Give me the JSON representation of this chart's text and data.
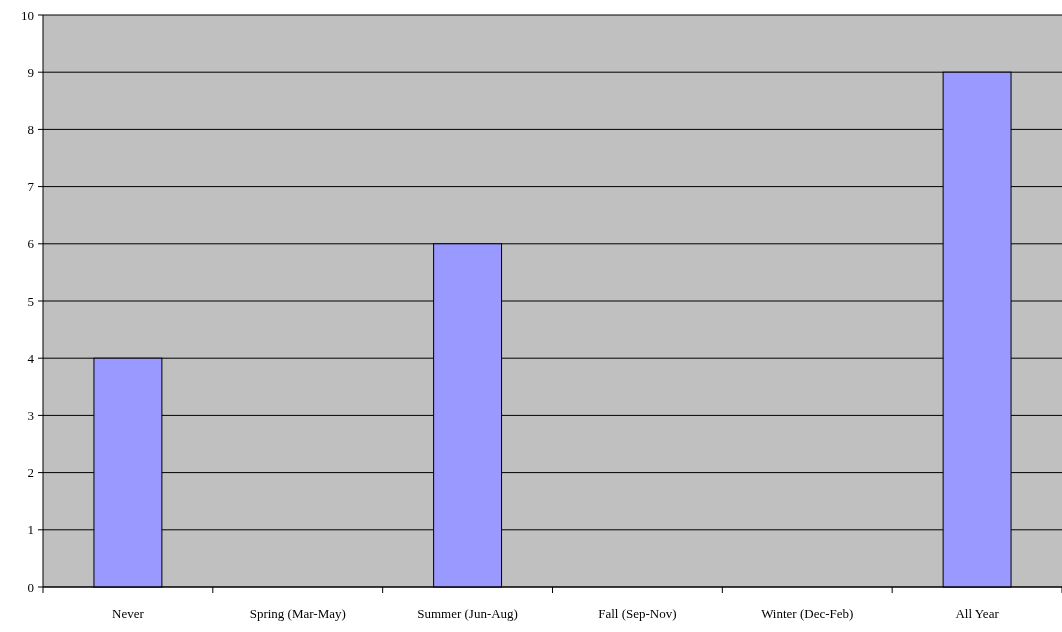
{
  "chart_data": {
    "type": "bar",
    "categories": [
      "Never",
      "Spring (Mar-May)",
      "Summer (Jun-Aug)",
      "Fall (Sep-Nov)",
      "Winter (Dec-Feb)",
      "All Year"
    ],
    "values": [
      4,
      0,
      6,
      0,
      0,
      9
    ],
    "color": "#9999ff",
    "ylim": [
      0,
      10
    ],
    "yticks": [
      0,
      1,
      2,
      3,
      4,
      5,
      6,
      7,
      8,
      9,
      10
    ],
    "grid": "y"
  }
}
